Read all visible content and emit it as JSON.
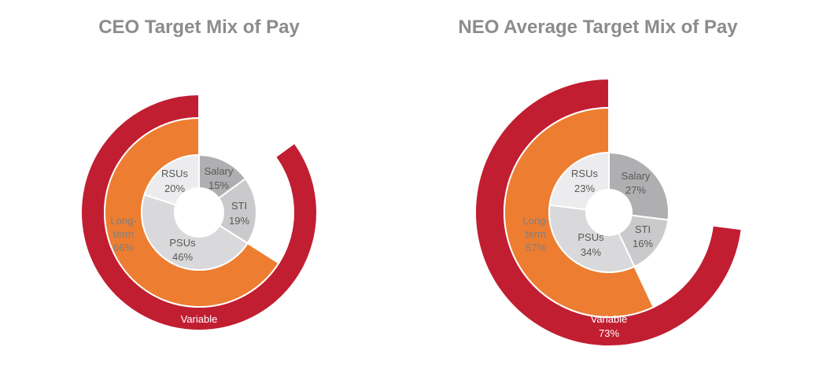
{
  "colors": {
    "variable": "#c11e32",
    "long_term": "#ed7d31",
    "salary": "#afafb1",
    "sti": "#cacacc",
    "psus": "#d9d9db",
    "rsus": "#ececee",
    "separator": "#ffffff"
  },
  "chart_data": [
    {
      "type": "pie",
      "title": "CEO Target Mix of Pay",
      "outer_ring": {
        "label": "Variable",
        "value_label": "85%",
        "value": 85
      },
      "middle_ring": {
        "label": "Long-term",
        "value_label": "66%",
        "value": 66
      },
      "inner_ring": [
        {
          "label": "Salary",
          "value_label": "15%",
          "value": 15
        },
        {
          "label": "STI",
          "value_label": "19%",
          "value": 19
        },
        {
          "label": "PSUs",
          "value_label": "46%",
          "value": 46
        },
        {
          "label": "RSUs",
          "value_label": "20%",
          "value": 20
        }
      ]
    },
    {
      "type": "pie",
      "title": "NEO Average Target Mix of Pay",
      "outer_ring": {
        "label": "Variable",
        "value_label": "73%",
        "value": 73
      },
      "middle_ring": {
        "label": "Long-term",
        "value_label": "57%",
        "value": 57
      },
      "inner_ring": [
        {
          "label": "Salary",
          "value_label": "27%",
          "value": 27
        },
        {
          "label": "STI",
          "value_label": "16%",
          "value": 16
        },
        {
          "label": "PSUs",
          "value_label": "34%",
          "value": 34
        },
        {
          "label": "RSUs",
          "value_label": "23%",
          "value": 23
        }
      ]
    }
  ]
}
